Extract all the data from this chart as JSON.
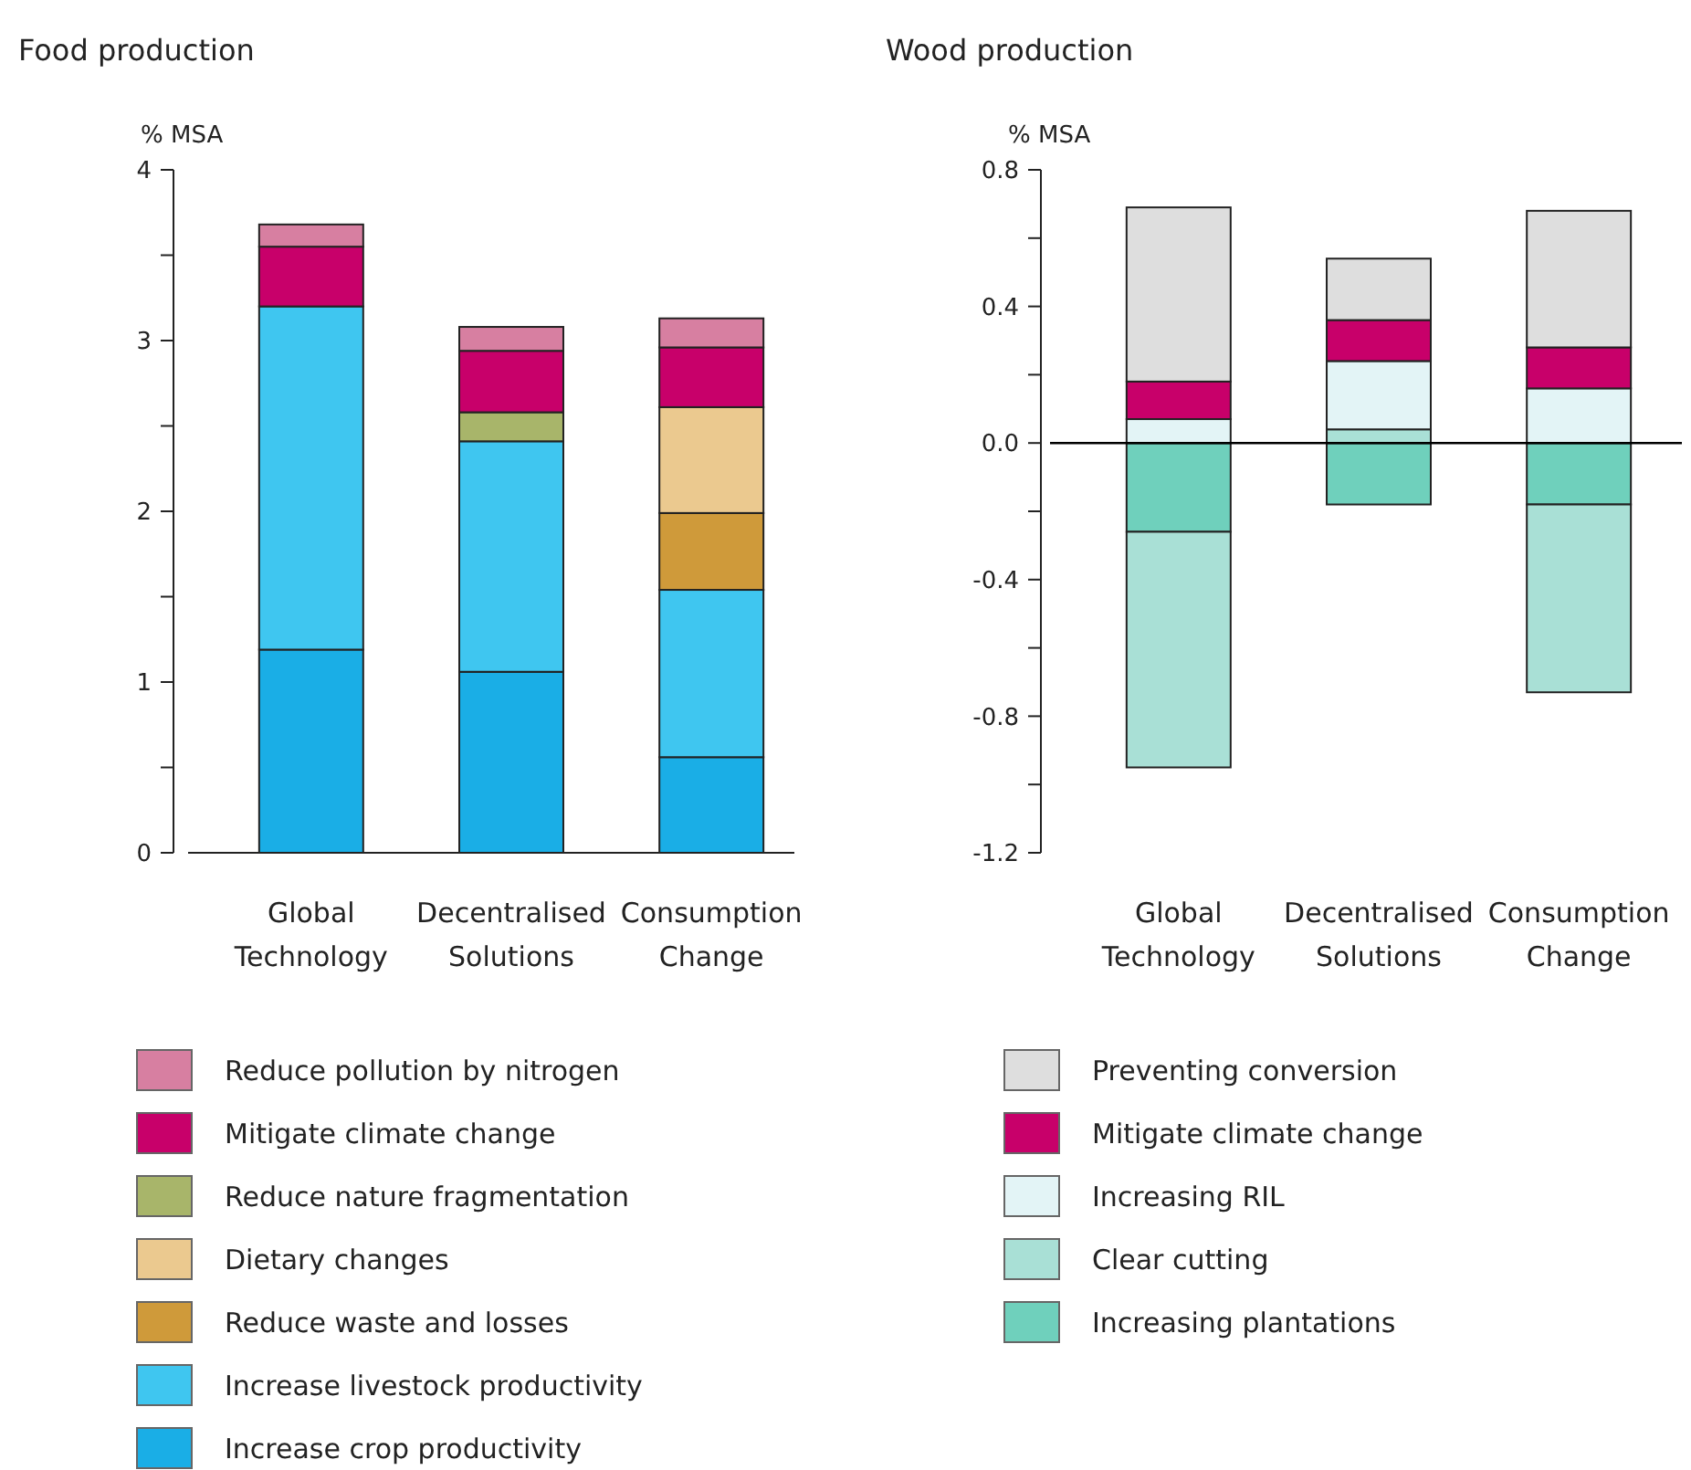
{
  "chart_data": [
    {
      "type": "bar",
      "title": "Food production",
      "ylabel": "% MSA",
      "categories": [
        "Global Technology",
        "Decentralised Solutions",
        "Consumption Change"
      ],
      "stacked": true,
      "legend": "bottom",
      "ylim": [
        0,
        4
      ],
      "yticks": [
        0,
        {
          "value": 0.5,
          "label": null
        },
        1,
        {
          "value": 1.5,
          "label": null
        },
        2,
        {
          "value": 2.5,
          "label": null
        },
        3,
        {
          "value": 3.5,
          "label": null
        },
        4
      ],
      "series": [
        {
          "name": "Increase crop productivity",
          "color": "#1aaee6",
          "values": [
            1.19,
            1.06,
            0.56
          ]
        },
        {
          "name": "Increase livestock productivity",
          "color": "#3fc6f0",
          "values": [
            2.01,
            1.35,
            0.98
          ]
        },
        {
          "name": "Reduce waste and losses",
          "color": "#cf9a3a",
          "values": [
            0,
            0,
            0.45
          ]
        },
        {
          "name": "Dietary changes",
          "color": "#ebc98f",
          "values": [
            0,
            0,
            0.62
          ]
        },
        {
          "name": "Reduce nature fragmentation",
          "color": "#a8b56a",
          "values": [
            0,
            0.17,
            0
          ]
        },
        {
          "name": "Mitigate climate change",
          "color": "#c8006a",
          "values": [
            0.35,
            0.36,
            0.35
          ]
        },
        {
          "name": "Reduce pollution by nitrogen",
          "color": "#d77fa1",
          "values": [
            0.13,
            0.14,
            0.17
          ]
        }
      ]
    },
    {
      "type": "bar",
      "title": "Wood production",
      "ylabel": "% MSA",
      "categories": [
        "Global Technology",
        "Decentralised Solutions",
        "Consumption Change"
      ],
      "stacked": true,
      "legend": "bottom",
      "ylim": [
        -1.2,
        0.8
      ],
      "yticks": [
        {
          "value": -1.2,
          "label": "-1.2"
        },
        {
          "value": -1,
          "label": null
        },
        {
          "value": -0.8,
          "label": "-0.8"
        },
        {
          "value": -0.6,
          "label": null
        },
        {
          "value": -0.4,
          "label": "-0.4"
        },
        {
          "value": -0.2,
          "label": null
        },
        {
          "value": 0,
          "label": "0.0"
        },
        {
          "value": 0.2,
          "label": null
        },
        0.4,
        {
          "value": 0.6,
          "label": null
        },
        0.8
      ],
      "ref_lines": [
        {
          "axis": "y",
          "value": 0,
          "color": "#000000"
        }
      ],
      "series": [
        {
          "name": "Increasing plantations",
          "color": "#6fd0bc",
          "values": [
            -0.26,
            -0.18,
            -0.18
          ]
        },
        {
          "name": "Clear cutting",
          "color": "#a9e0d6",
          "values": [
            -0.69,
            0.04,
            -0.55
          ]
        },
        {
          "name": "Increasing RIL",
          "color": "#e3f4f6",
          "values": [
            0.07,
            0.2,
            0.16
          ]
        },
        {
          "name": "Mitigate climate change",
          "color": "#c8006a",
          "values": [
            0.11,
            0.12,
            0.12
          ]
        },
        {
          "name": "Preventing conversion",
          "color": "#dedede",
          "values": [
            0.51,
            0.18,
            0.4
          ]
        }
      ]
    }
  ]
}
